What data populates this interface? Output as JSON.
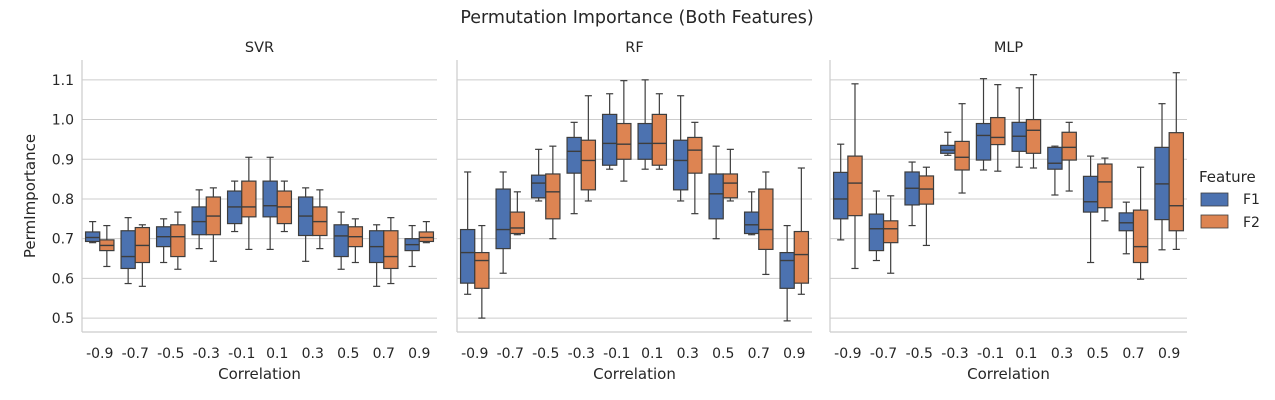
{
  "title": "Permutation Importance (Both Features)",
  "colors": {
    "F1": "#4c72b0",
    "F2": "#dd8452",
    "grid": "#cccccc",
    "axis": "#cccccc",
    "whisker": "#3d3d3d",
    "text": "#262626"
  },
  "chart_data": [
    {
      "type": "box",
      "title": "SVR",
      "xlabel": "Correlation",
      "ylabel": "PermImportance",
      "ylim": [
        0.465,
        1.15
      ],
      "yticks": [
        0.5,
        0.6,
        0.7,
        0.8,
        0.9,
        1.0,
        1.1
      ],
      "categories": [
        "-0.9",
        "-0.7",
        "-0.5",
        "-0.3",
        "-0.1",
        "0.1",
        "0.3",
        "0.5",
        "0.7",
        "0.9"
      ],
      "series": [
        {
          "name": "F1",
          "boxes": [
            {
              "lw": 0.69,
              "q1": 0.693,
              "med": 0.703,
              "q3": 0.717,
              "uw": 0.743
            },
            {
              "lw": 0.587,
              "q1": 0.625,
              "med": 0.655,
              "q3": 0.72,
              "uw": 0.753
            },
            {
              "lw": 0.64,
              "q1": 0.68,
              "med": 0.705,
              "q3": 0.73,
              "uw": 0.75
            },
            {
              "lw": 0.675,
              "q1": 0.71,
              "med": 0.743,
              "q3": 0.78,
              "uw": 0.823
            },
            {
              "lw": 0.718,
              "q1": 0.738,
              "med": 0.78,
              "q3": 0.82,
              "uw": 0.845
            },
            {
              "lw": 0.673,
              "q1": 0.755,
              "med": 0.783,
              "q3": 0.845,
              "uw": 0.905
            },
            {
              "lw": 0.643,
              "q1": 0.708,
              "med": 0.757,
              "q3": 0.805,
              "uw": 0.828
            },
            {
              "lw": 0.623,
              "q1": 0.655,
              "med": 0.707,
              "q3": 0.735,
              "uw": 0.767
            },
            {
              "lw": 0.58,
              "q1": 0.64,
              "med": 0.68,
              "q3": 0.72,
              "uw": 0.735
            },
            {
              "lw": 0.63,
              "q1": 0.67,
              "med": 0.685,
              "q3": 0.7,
              "uw": 0.733
            }
          ]
        },
        {
          "name": "F2",
          "boxes": [
            {
              "lw": 0.63,
              "q1": 0.67,
              "med": 0.683,
              "q3": 0.697,
              "uw": 0.733
            },
            {
              "lw": 0.58,
              "q1": 0.64,
              "med": 0.683,
              "q3": 0.728,
              "uw": 0.735
            },
            {
              "lw": 0.623,
              "q1": 0.655,
              "med": 0.705,
              "q3": 0.735,
              "uw": 0.767
            },
            {
              "lw": 0.643,
              "q1": 0.71,
              "med": 0.757,
              "q3": 0.805,
              "uw": 0.828
            },
            {
              "lw": 0.673,
              "q1": 0.755,
              "med": 0.78,
              "q3": 0.845,
              "uw": 0.905
            },
            {
              "lw": 0.718,
              "q1": 0.738,
              "med": 0.78,
              "q3": 0.82,
              "uw": 0.845
            },
            {
              "lw": 0.675,
              "q1": 0.708,
              "med": 0.743,
              "q3": 0.78,
              "uw": 0.823
            },
            {
              "lw": 0.64,
              "q1": 0.68,
              "med": 0.705,
              "q3": 0.73,
              "uw": 0.75
            },
            {
              "lw": 0.587,
              "q1": 0.625,
              "med": 0.655,
              "q3": 0.72,
              "uw": 0.753
            },
            {
              "lw": 0.69,
              "q1": 0.693,
              "med": 0.703,
              "q3": 0.717,
              "uw": 0.743
            }
          ]
        }
      ]
    },
    {
      "type": "box",
      "title": "RF",
      "xlabel": "Correlation",
      "ylabel": "",
      "ylim": [
        0.465,
        1.15
      ],
      "yticks": [
        0.5,
        0.6,
        0.7,
        0.8,
        0.9,
        1.0,
        1.1
      ],
      "categories": [
        "-0.9",
        "-0.7",
        "-0.5",
        "-0.3",
        "-0.1",
        "0.1",
        "0.3",
        "0.5",
        "0.7",
        "0.9"
      ],
      "series": [
        {
          "name": "F1",
          "boxes": [
            {
              "lw": 0.56,
              "q1": 0.588,
              "med": 0.665,
              "q3": 0.723,
              "uw": 0.868
            },
            {
              "lw": 0.613,
              "q1": 0.675,
              "med": 0.723,
              "q3": 0.825,
              "uw": 0.868
            },
            {
              "lw": 0.795,
              "q1": 0.803,
              "med": 0.84,
              "q3": 0.86,
              "uw": 0.925
            },
            {
              "lw": 0.763,
              "q1": 0.865,
              "med": 0.92,
              "q3": 0.955,
              "uw": 0.993
            },
            {
              "lw": 0.875,
              "q1": 0.885,
              "med": 0.94,
              "q3": 1.013,
              "uw": 1.065
            },
            {
              "lw": 0.875,
              "q1": 0.9,
              "med": 0.94,
              "q3": 0.99,
              "uw": 1.1
            },
            {
              "lw": 0.795,
              "q1": 0.823,
              "med": 0.897,
              "q3": 0.948,
              "uw": 1.06
            },
            {
              "lw": 0.7,
              "q1": 0.75,
              "med": 0.813,
              "q3": 0.863,
              "uw": 0.933
            },
            {
              "lw": 0.71,
              "q1": 0.713,
              "med": 0.735,
              "q3": 0.767,
              "uw": 0.818
            },
            {
              "lw": 0.493,
              "q1": 0.575,
              "med": 0.645,
              "q3": 0.665,
              "uw": 0.733
            }
          ]
        },
        {
          "name": "F2",
          "boxes": [
            {
              "lw": 0.5,
              "q1": 0.575,
              "med": 0.645,
              "q3": 0.665,
              "uw": 0.733
            },
            {
              "lw": 0.71,
              "q1": 0.713,
              "med": 0.727,
              "q3": 0.767,
              "uw": 0.818
            },
            {
              "lw": 0.7,
              "q1": 0.75,
              "med": 0.818,
              "q3": 0.863,
              "uw": 0.933
            },
            {
              "lw": 0.795,
              "q1": 0.823,
              "med": 0.897,
              "q3": 0.948,
              "uw": 1.06
            },
            {
              "lw": 0.845,
              "q1": 0.9,
              "med": 0.938,
              "q3": 0.99,
              "uw": 1.098
            },
            {
              "lw": 0.875,
              "q1": 0.885,
              "med": 0.94,
              "q3": 1.013,
              "uw": 1.065
            },
            {
              "lw": 0.763,
              "q1": 0.865,
              "med": 0.923,
              "q3": 0.955,
              "uw": 0.993
            },
            {
              "lw": 0.795,
              "q1": 0.803,
              "med": 0.84,
              "q3": 0.863,
              "uw": 0.925
            },
            {
              "lw": 0.61,
              "q1": 0.673,
              "med": 0.723,
              "q3": 0.825,
              "uw": 0.868
            },
            {
              "lw": 0.56,
              "q1": 0.588,
              "med": 0.66,
              "q3": 0.718,
              "uw": 0.878
            }
          ]
        }
      ]
    },
    {
      "type": "box",
      "title": "MLP",
      "xlabel": "Correlation",
      "ylabel": "",
      "ylim": [
        0.465,
        1.15
      ],
      "yticks": [
        0.5,
        0.6,
        0.7,
        0.8,
        0.9,
        1.0,
        1.1
      ],
      "categories": [
        "-0.9",
        "-0.7",
        "-0.5",
        "-0.3",
        "-0.1",
        "0.1",
        "0.3",
        "0.5",
        "0.7",
        "0.9"
      ],
      "series": [
        {
          "name": "F1",
          "boxes": [
            {
              "lw": 0.697,
              "q1": 0.75,
              "med": 0.8,
              "q3": 0.867,
              "uw": 0.938
            },
            {
              "lw": 0.645,
              "q1": 0.67,
              "med": 0.725,
              "q3": 0.762,
              "uw": 0.82
            },
            {
              "lw": 0.733,
              "q1": 0.785,
              "med": 0.827,
              "q3": 0.868,
              "uw": 0.893
            },
            {
              "lw": 0.91,
              "q1": 0.915,
              "med": 0.923,
              "q3": 0.935,
              "uw": 0.968
            },
            {
              "lw": 0.873,
              "q1": 0.898,
              "med": 0.96,
              "q3": 0.99,
              "uw": 1.103
            },
            {
              "lw": 0.88,
              "q1": 0.92,
              "med": 0.958,
              "q3": 0.993,
              "uw": 1.08
            },
            {
              "lw": 0.81,
              "q1": 0.875,
              "med": 0.89,
              "q3": 0.93,
              "uw": 0.933
            },
            {
              "lw": 0.64,
              "q1": 0.767,
              "med": 0.793,
              "q3": 0.857,
              "uw": 0.908
            },
            {
              "lw": 0.662,
              "q1": 0.72,
              "med": 0.74,
              "q3": 0.765,
              "uw": 0.792
            },
            {
              "lw": 0.672,
              "q1": 0.748,
              "med": 0.838,
              "q3": 0.93,
              "uw": 1.04
            }
          ]
        },
        {
          "name": "F2",
          "boxes": [
            {
              "lw": 0.625,
              "q1": 0.758,
              "med": 0.84,
              "q3": 0.908,
              "uw": 1.09
            },
            {
              "lw": 0.613,
              "q1": 0.69,
              "med": 0.725,
              "q3": 0.745,
              "uw": 0.808
            },
            {
              "lw": 0.683,
              "q1": 0.787,
              "med": 0.825,
              "q3": 0.858,
              "uw": 0.88
            },
            {
              "lw": 0.815,
              "q1": 0.873,
              "med": 0.905,
              "q3": 0.945,
              "uw": 1.04
            },
            {
              "lw": 0.87,
              "q1": 0.937,
              "med": 0.955,
              "q3": 1.005,
              "uw": 1.088
            },
            {
              "lw": 0.878,
              "q1": 0.915,
              "med": 0.973,
              "q3": 1.0,
              "uw": 1.113
            },
            {
              "lw": 0.82,
              "q1": 0.898,
              "med": 0.93,
              "q3": 0.968,
              "uw": 0.993
            },
            {
              "lw": 0.745,
              "q1": 0.778,
              "med": 0.843,
              "q3": 0.888,
              "uw": 0.903
            },
            {
              "lw": 0.598,
              "q1": 0.64,
              "med": 0.68,
              "q3": 0.772,
              "uw": 0.88
            },
            {
              "lw": 0.673,
              "q1": 0.72,
              "med": 0.783,
              "q3": 0.967,
              "uw": 1.118
            }
          ]
        }
      ]
    }
  ],
  "legend": {
    "title": "Feature",
    "entries": [
      "F1",
      "F2"
    ]
  }
}
